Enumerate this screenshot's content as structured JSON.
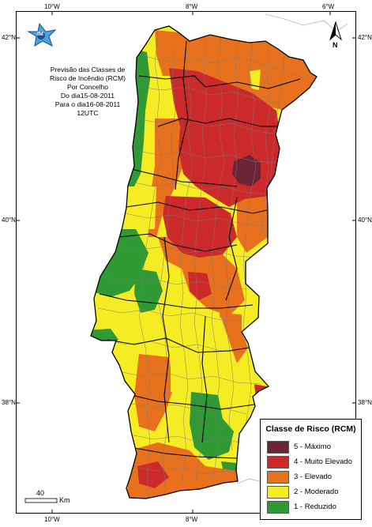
{
  "map": {
    "title_lines": [
      "Previsão das Classes de",
      "Risco de Incêndio (RCM)",
      "Por Concelho",
      "Do dia15-08-2011",
      "Para o dia16-08-2011",
      "12UTC"
    ],
    "logo_text": "IM",
    "north_label": "N",
    "scale": {
      "value": "40",
      "unit": "Km"
    },
    "graticule": {
      "lon_top": [
        "10°W",
        "8°W",
        "6°W"
      ],
      "lon_bottom": [
        "10°W",
        "8°W"
      ],
      "lat_left": [
        "42°N",
        "40°N",
        "38°N"
      ],
      "lat_right": [
        "42°N",
        "40°N",
        "38°N"
      ]
    },
    "legend": {
      "title": "Classe de Risco (RCM)",
      "items": [
        {
          "label": "5 - Máximo",
          "color": "#6b2537"
        },
        {
          "label": "4 - Muito Elevado",
          "color": "#cc2a2a"
        },
        {
          "label": "3 - Elevado",
          "color": "#e8711d"
        },
        {
          "label": "2 - Moderado",
          "color": "#f5ec24"
        },
        {
          "label": "1 - Reduzido",
          "color": "#2f9a34"
        }
      ]
    },
    "colors": {
      "land_outside": "#ffffff",
      "district_border": "#000000",
      "municipal_border": "#7a7a7a"
    }
  }
}
